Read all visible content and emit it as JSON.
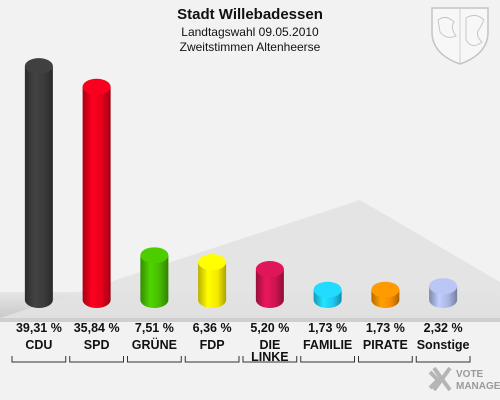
{
  "chart_data": {
    "type": "bar",
    "title": "Stadt Willebadessen",
    "subtitle_1": "Landtagswahl 09.05.2010",
    "subtitle_2": "Zweitstimmen Altenheerse",
    "categories": [
      "CDU",
      "SPD",
      "GRÜNE",
      "FDP",
      "DIE LINKE",
      "FAMILIE",
      "PIRATE",
      "Sonstige"
    ],
    "category_lines": [
      [
        "CDU"
      ],
      [
        "SPD"
      ],
      [
        "GRÜNE"
      ],
      [
        "FDP"
      ],
      [
        "DIE",
        "LINKE"
      ],
      [
        "FAMILIE"
      ],
      [
        "PIRATE"
      ],
      [
        "Sonstige"
      ]
    ],
    "values": [
      39.31,
      35.84,
      7.51,
      6.36,
      5.2,
      1.73,
      1.73,
      2.32
    ],
    "value_labels": [
      "39,31 %",
      "35,84 %",
      "7,51 %",
      "6,36 %",
      "5,20 %",
      "1,73 %",
      "1,73 %",
      "2,32 %"
    ],
    "colors": [
      "#3a3a3a",
      "#e3001b",
      "#46b900",
      "#f5e800",
      "#cc1450",
      "#1ec8f0",
      "#f58c00",
      "#a8b4e0"
    ],
    "ylim": [
      0,
      40
    ]
  },
  "logo": {
    "line1": "VOTE",
    "line2": "MANAGER"
  }
}
